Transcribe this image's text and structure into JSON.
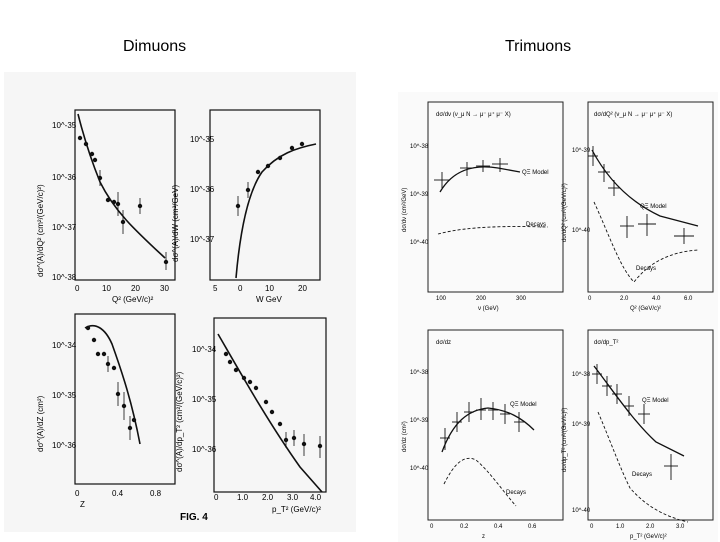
{
  "headings": {
    "left": "Dimuons",
    "right": "Trimuons"
  },
  "dimuons": {
    "figure_label": "FIG. 4",
    "panels": [
      {
        "ylabel": "dσ^(A)/dQ² (cm²/(GeV/c)²)",
        "xlabel": "Q² (GeV/c)²",
        "yticks": [
          "10^-35",
          "10^-36",
          "10^-37",
          "10^-38"
        ],
        "xticks": [
          "0",
          "10",
          "20",
          "30"
        ]
      },
      {
        "ylabel": "dσ^(A)/dW (cm²/GeV)",
        "xlabel": "W GeV",
        "yticks": [
          "10^-35",
          "10^-36",
          "10^-37"
        ],
        "xticks": [
          "5",
          "0",
          "10",
          "20"
        ]
      },
      {
        "ylabel": "dσ^(A)/dZ (cm²)",
        "xlabel": "Z",
        "yticks": [
          "10^-34",
          "10^-35",
          "10^-36"
        ],
        "xticks": [
          "0",
          "0.4",
          "0.8"
        ]
      },
      {
        "ylabel": "dσ^(A)/dp_T² (cm²/(GeV/c)²)",
        "xlabel": "p_T² (GeV/c)²",
        "yticks": [
          "10^-34",
          "10^-35",
          "10^-36"
        ],
        "xticks": [
          "0",
          "1.0",
          "2.0",
          "3.0",
          "4.0"
        ]
      }
    ]
  },
  "trimuons": {
    "panels": [
      {
        "title": "dσ/dν (ν_μ N → μ⁻ μ⁺ μ⁻ X)",
        "ylabel": "dσ/dν (cm²/GeV)",
        "xlabel": "ν (GeV)",
        "yticks": [
          "10^-38",
          "10^-39",
          "10^-40"
        ],
        "xticks": [
          "100",
          "200",
          "300"
        ],
        "model_label": "QΞ Model",
        "decays_label": "Decays"
      },
      {
        "title": "dσ/dQ² (ν_μ N → μ⁻ μ⁺ μ⁻ X)",
        "ylabel": "dσ/dQ² (cm²/(GeV/c)²)",
        "xlabel": "Q² (GeV/c)²",
        "yticks": [
          "10^-39",
          "10^-40"
        ],
        "xticks": [
          "0",
          "2.0",
          "4.0",
          "6.0"
        ],
        "model_label": "QΞ Model",
        "decays_label": "Decays"
      },
      {
        "title": "dσ/dz",
        "ylabel": "dσ/dz (cm²)",
        "xlabel": "z",
        "yticks": [
          "10^-38",
          "10^-39",
          "10^-40"
        ],
        "xticks": [
          "0",
          "0.2",
          "0.4",
          "0.6"
        ],
        "model_label": "QΞ Model",
        "decays_label": "Decays"
      },
      {
        "title": "dσ/dp_T²",
        "ylabel": "dσ/dp_T² (cm²/(GeV/c)²)",
        "xlabel": "p_T² (GeV/c)²",
        "yticks": [
          "10^-38",
          "10^-39",
          "10^-40"
        ],
        "xticks": [
          "0",
          "1.0",
          "2.0",
          "3.0"
        ],
        "model_label": "QΞ Model",
        "decays_label": "Decays"
      }
    ]
  }
}
